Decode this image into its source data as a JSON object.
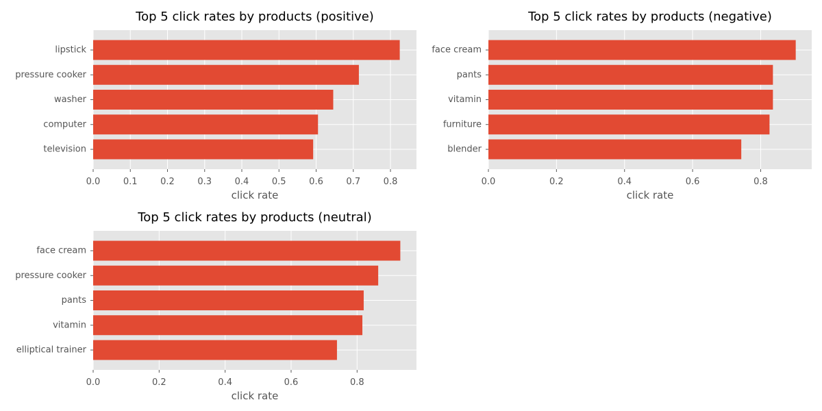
{
  "colors": {
    "bar": "#E24A33",
    "plot_background": "#E5E5E5",
    "grid": "#FFFFFF",
    "tick_mark": "#555555",
    "text": "#555555",
    "title": "#000000"
  },
  "chart_data": [
    {
      "type": "bar",
      "orientation": "horizontal",
      "title": "Top 5 click rates by products (positive)",
      "xlabel": "click rate",
      "ylabel": "",
      "categories": [
        "lipstick",
        "pressure cooker",
        "washer",
        "computer",
        "television"
      ],
      "values": [
        0.825,
        0.715,
        0.646,
        0.605,
        0.592
      ],
      "xlim": [
        0,
        0.87
      ],
      "xticks": [
        0.0,
        0.1,
        0.2,
        0.3,
        0.4,
        0.5,
        0.6,
        0.7,
        0.8
      ],
      "xtick_labels": [
        "0.0",
        "0.1",
        "0.2",
        "0.3",
        "0.4",
        "0.5",
        "0.6",
        "0.7",
        "0.8"
      ],
      "grid": true,
      "legend": "none"
    },
    {
      "type": "bar",
      "orientation": "horizontal",
      "title": "Top 5 click rates by products (negative)",
      "xlabel": "click rate",
      "ylabel": "",
      "categories": [
        "face cream",
        "pants",
        "vitamin",
        "furniture",
        "blender"
      ],
      "values": [
        0.903,
        0.836,
        0.836,
        0.826,
        0.743
      ],
      "xlim": [
        0,
        0.95
      ],
      "xticks": [
        0.0,
        0.2,
        0.4,
        0.6,
        0.8
      ],
      "xtick_labels": [
        "0.0",
        "0.2",
        "0.4",
        "0.6",
        "0.8"
      ],
      "grid": true,
      "legend": "none"
    },
    {
      "type": "bar",
      "orientation": "horizontal",
      "title": "Top 5 click rates by products (neutral)",
      "xlabel": "click rate",
      "ylabel": "",
      "categories": [
        "face cream",
        "pressure cooker",
        "pants",
        "vitamin",
        "elliptical trainer"
      ],
      "values": [
        0.931,
        0.864,
        0.82,
        0.816,
        0.739
      ],
      "xlim": [
        0,
        0.98
      ],
      "xticks": [
        0.0,
        0.2,
        0.4,
        0.6,
        0.8
      ],
      "xtick_labels": [
        "0.0",
        "0.2",
        "0.4",
        "0.6",
        "0.8"
      ],
      "grid": true,
      "legend": "none"
    }
  ]
}
